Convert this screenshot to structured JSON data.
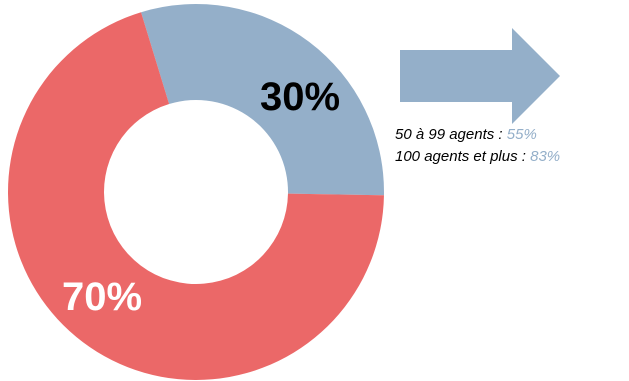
{
  "chart_data": {
    "type": "pie",
    "donut": true,
    "slices": [
      {
        "label": "30%",
        "value": 30,
        "color": "#94afc9",
        "label_color": "#000000"
      },
      {
        "label": "70%",
        "value": 70,
        "color": "#eb6868",
        "label_color": "#ffffff"
      }
    ]
  },
  "callout": {
    "arrow_icon": "right-arrow-icon",
    "arrow_color": "#94afc9",
    "lines": [
      {
        "text": "50 à 99 agents : ",
        "value": "55%"
      },
      {
        "text": "100 agents et plus : ",
        "value": "83%"
      }
    ]
  }
}
